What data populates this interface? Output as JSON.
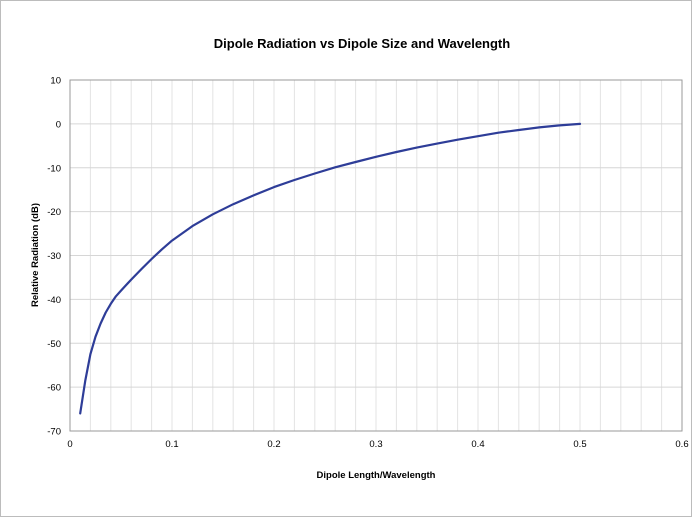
{
  "chart_data": {
    "type": "line",
    "title": "Dipole Radiation vs Dipole Size and Wavelength",
    "xlabel": "Dipole Length/Wavelength",
    "ylabel": "Relative Radiation (dB)",
    "xlim": [
      0,
      0.6
    ],
    "ylim": [
      -70,
      10
    ],
    "x_ticks": [
      "0",
      "0.1",
      "0.2",
      "0.3",
      "0.4",
      "0.5",
      "0.6"
    ],
    "y_ticks": [
      "10",
      "0",
      "-10",
      "-20",
      "-30",
      "-40",
      "-50",
      "-60",
      "-70"
    ],
    "grid": true,
    "legend": "none",
    "series": [
      {
        "color": "#2e3d98",
        "x": [
          0.01,
          0.015,
          0.02,
          0.025,
          0.03,
          0.035,
          0.04,
          0.045,
          0.05,
          0.06,
          0.07,
          0.08,
          0.09,
          0.1,
          0.12,
          0.14,
          0.16,
          0.18,
          0.2,
          0.22,
          0.24,
          0.26,
          0.28,
          0.3,
          0.32,
          0.34,
          0.36,
          0.38,
          0.4,
          0.42,
          0.44,
          0.46,
          0.48,
          0.5
        ],
        "y": [
          -66,
          -58.5,
          -52.5,
          -48.5,
          -45.5,
          -43,
          -41,
          -39.3,
          -38,
          -35.5,
          -33.1,
          -30.8,
          -28.6,
          -26.6,
          -23.3,
          -20.6,
          -18.3,
          -16.3,
          -14.4,
          -12.8,
          -11.3,
          -9.9,
          -8.7,
          -7.5,
          -6.4,
          -5.4,
          -4.5,
          -3.6,
          -2.8,
          -2.0,
          -1.4,
          -0.8,
          -0.35,
          0
        ]
      }
    ]
  }
}
